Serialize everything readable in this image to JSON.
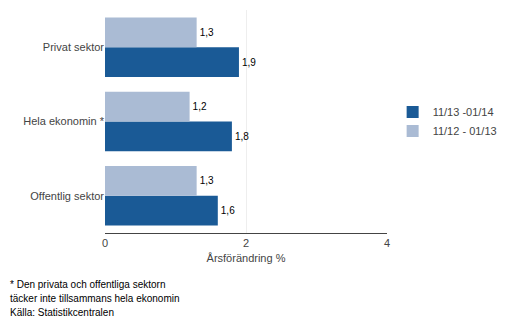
{
  "chart_data": {
    "type": "bar",
    "orientation": "horizontal",
    "categories": [
      "Offentlig sektor",
      "Hela ekonomin *",
      "Privat sektor"
    ],
    "series": [
      {
        "name": "11/13 -01/14",
        "color": "#1A5A96",
        "values": [
          1.6,
          1.8,
          1.9
        ],
        "value_labels": [
          "1,6",
          "1,8",
          "1,9"
        ]
      },
      {
        "name": "11/12 - 01/13",
        "color": "#AABBD4",
        "values": [
          1.3,
          1.2,
          1.3
        ],
        "value_labels": [
          "1,3",
          "1,2",
          "1,3"
        ]
      }
    ],
    "x_label": "Årsförändring %",
    "xlim": [
      0,
      4
    ],
    "xticks": [
      0,
      2,
      4
    ],
    "grid": true,
    "legend": "right",
    "data_labels": true,
    "annotations": [
      "* Den privata och offentliga sektorn",
      "täcker inte tillsammans hela ekonomin",
      "Källa: Statistikcentralen"
    ]
  }
}
